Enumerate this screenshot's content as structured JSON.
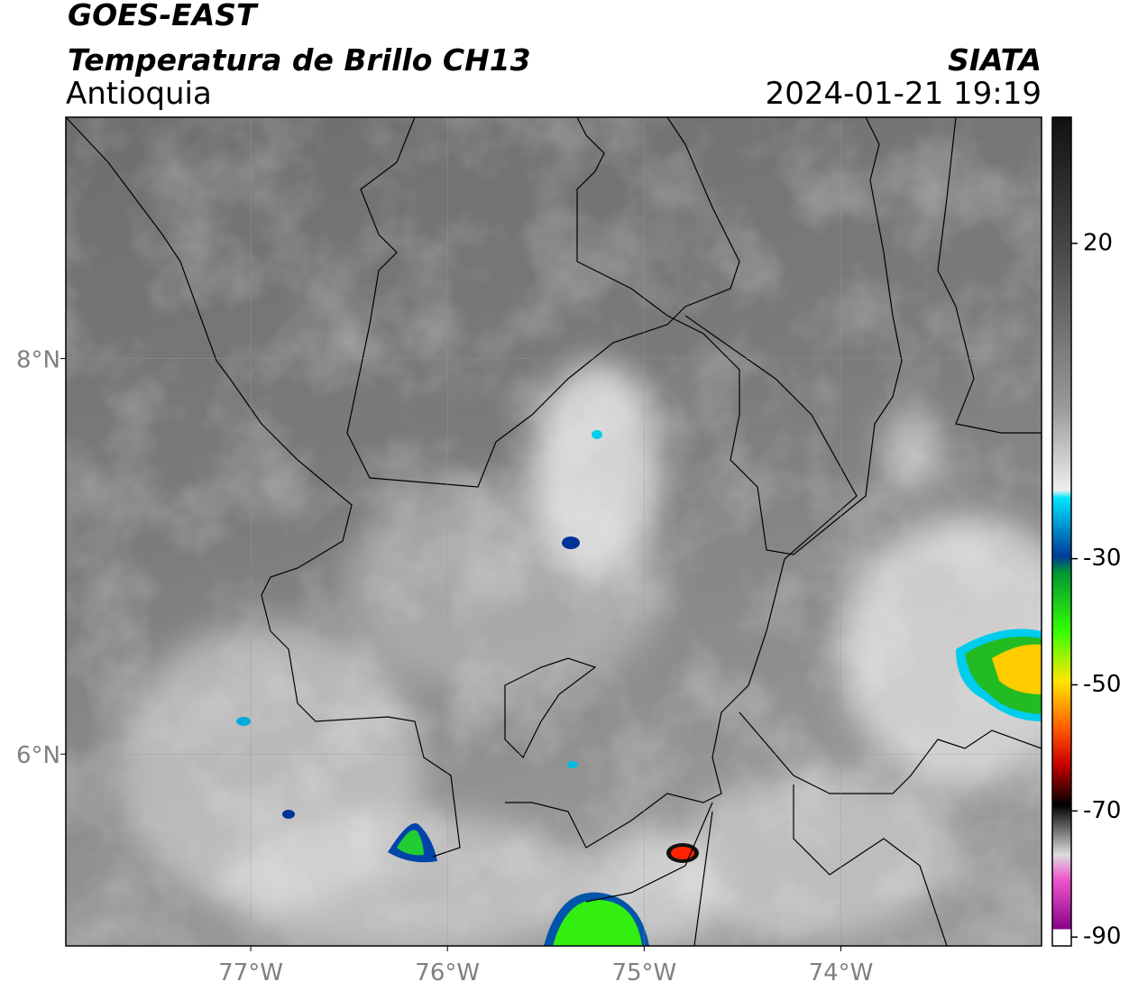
{
  "header": {
    "title": "GOES-EAST",
    "subtitle": "Temperatura de Brillo CH13",
    "region": "Antioquia",
    "source": "SIATA",
    "datetime": "2024-01-21 19:19"
  },
  "map": {
    "lonlim": [
      -77.94,
      -72.98
    ],
    "latlim": [
      5.03,
      9.22
    ],
    "lon_ticks": [
      {
        "value": -77,
        "label": "77°W"
      },
      {
        "value": -76,
        "label": "76°W"
      },
      {
        "value": -75,
        "label": "75°W"
      },
      {
        "value": -74,
        "label": "74°W"
      }
    ],
    "lat_ticks": [
      {
        "value": 8,
        "label": "8°N"
      },
      {
        "value": 6,
        "label": "6°N"
      }
    ]
  },
  "colorbar": {
    "lim": [
      -91.4,
      40
    ],
    "ticks": [
      20,
      -30,
      -50,
      -70,
      -90
    ]
  }
}
